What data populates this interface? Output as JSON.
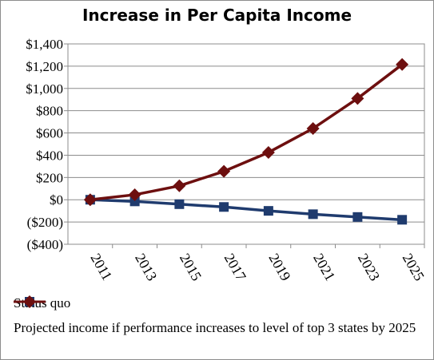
{
  "chart_data": {
    "type": "line",
    "title": "Increase in Per Capita Income",
    "categories": [
      "2011",
      "2013",
      "2015",
      "2017",
      "2019",
      "2021",
      "2023",
      "2025"
    ],
    "yticks": [
      "$1,400",
      "$1,200",
      "$1,000",
      "$800",
      "$600",
      "$400",
      "$200",
      "$0",
      "($200)",
      "($400)"
    ],
    "ytick_values": [
      1400,
      1200,
      1000,
      800,
      600,
      400,
      200,
      0,
      -200,
      -400
    ],
    "ylim": [
      -400,
      1400
    ],
    "grid": true,
    "legend_position": "bottom",
    "series": [
      {
        "name": "Status quo",
        "color": "#1f3b6e",
        "marker": "square",
        "values": [
          0,
          -15,
          -40,
          -65,
          -100,
          -130,
          -155,
          -180
        ]
      },
      {
        "name": "Projected income if performance increases to level of top 3 states by 2025",
        "color": "#6d0f0f",
        "marker": "diamond",
        "values": [
          0,
          45,
          125,
          255,
          425,
          640,
          910,
          1215
        ]
      }
    ]
  }
}
